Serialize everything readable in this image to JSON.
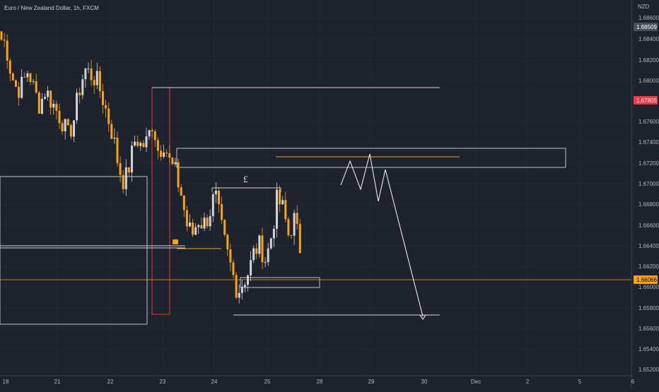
{
  "title": "Euro / New Zealand Dollar, 1h, FXCM",
  "chart_data": {
    "type": "candlestick",
    "title": "Euro / New Zealand Dollar, 1h, FXCM",
    "currency_label": "NZD",
    "ylim": [
      1.652,
      1.687
    ],
    "y_ticks": [
      "1.68600",
      "1.68400",
      "1.68200",
      "1.68000",
      "1.67600",
      "1.67400",
      "1.67200",
      "1.67000",
      "1.66800",
      "1.66600",
      "1.66400",
      "1.66200",
      "1.66000",
      "1.65800",
      "1.65600",
      "1.65400",
      "1.65200"
    ],
    "x_ticks": [
      "18",
      "21",
      "22",
      "23",
      "24",
      "25",
      "28",
      "29",
      "30",
      "Dec",
      "2",
      "5",
      "6"
    ],
    "price_tags": [
      {
        "value": "1.68509",
        "color": "#4a4f5c",
        "text_color": "#ffffff"
      },
      {
        "value": "1.67805",
        "color": "#f23645",
        "text_color": "#ffffff"
      },
      {
        "value": "1.66066",
        "color": "#f7a21b",
        "text_color": "#000000"
      }
    ],
    "candle_anchors": [
      [
        0,
        1.684
      ],
      [
        8,
        1.6835
      ],
      [
        16,
        1.6805
      ],
      [
        24,
        1.679
      ],
      [
        32,
        1.6795
      ],
      [
        40,
        1.681
      ],
      [
        48,
        1.679
      ],
      [
        56,
        1.6775
      ],
      [
        64,
        1.679
      ],
      [
        72,
        1.678
      ],
      [
        80,
        1.677
      ],
      [
        88,
        1.676
      ],
      [
        96,
        1.6745
      ],
      [
        104,
        1.676
      ],
      [
        112,
        1.679
      ],
      [
        120,
        1.681
      ],
      [
        128,
        1.6805
      ],
      [
        136,
        1.68
      ],
      [
        144,
        1.6785
      ],
      [
        152,
        1.6765
      ],
      [
        160,
        1.6745
      ],
      [
        168,
        1.6715
      ],
      [
        176,
        1.67
      ],
      [
        184,
        1.672
      ],
      [
        192,
        1.6745
      ],
      [
        200,
        1.6735
      ],
      [
        208,
        1.674
      ],
      [
        216,
        1.676
      ],
      [
        224,
        1.673
      ],
      [
        232,
        1.674
      ],
      [
        240,
        1.672
      ],
      [
        248,
        1.671
      ],
      [
        256,
        1.669
      ],
      [
        264,
        1.666
      ],
      [
        272,
        1.665
      ],
      [
        280,
        1.6665
      ],
      [
        288,
        1.666
      ],
      [
        296,
        1.667
      ],
      [
        304,
        1.669
      ],
      [
        312,
        1.666
      ],
      [
        320,
        1.6635
      ],
      [
        328,
        1.6615
      ],
      [
        336,
        1.6595
      ],
      [
        344,
        1.6605
      ],
      [
        352,
        1.6615
      ],
      [
        360,
        1.6635
      ],
      [
        368,
        1.664
      ],
      [
        376,
        1.6625
      ],
      [
        384,
        1.665
      ],
      [
        392,
        1.6685
      ],
      [
        400,
        1.6675
      ],
      [
        408,
        1.665
      ],
      [
        416,
        1.6665
      ],
      [
        424,
        1.664
      ],
      [
        428,
        1.6607
      ]
    ],
    "annotations": {
      "pound_label": "£"
    }
  }
}
